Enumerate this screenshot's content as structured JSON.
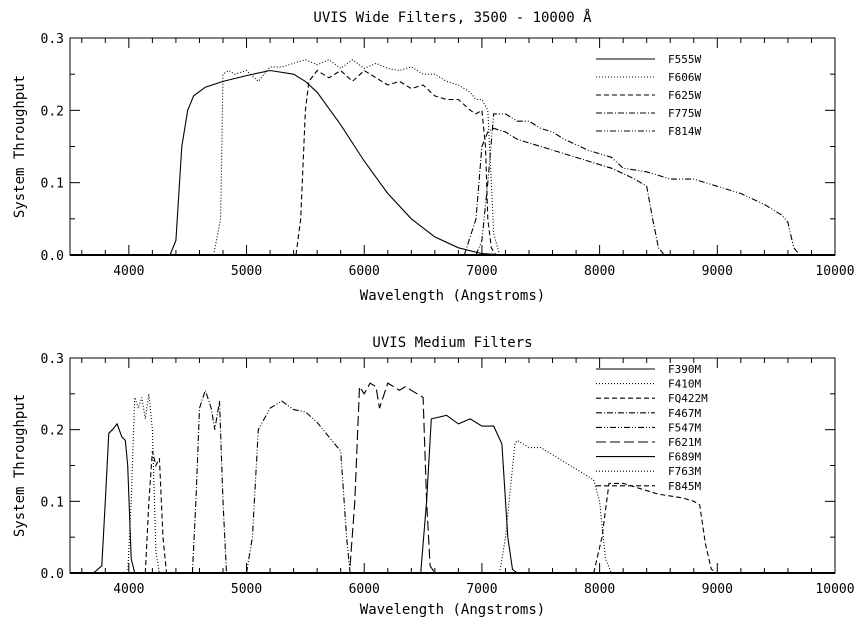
{
  "chart_data": [
    {
      "type": "line",
      "title": "UVIS Wide Filters, 3500 - 10000 Å",
      "xlabel": "Wavelength (Angstroms)",
      "ylabel": "System Throughput",
      "xlim": [
        3500,
        10000
      ],
      "ylim": [
        0,
        0.3
      ],
      "xticks": [
        "4000",
        "5000",
        "6000",
        "7000",
        "8000",
        "9000",
        "10000"
      ],
      "yticks": [
        "0.0",
        "0.1",
        "0.2",
        "0.3"
      ],
      "legend_position": "top-right",
      "grid": false,
      "series": [
        {
          "name": "F555W",
          "style": "solid",
          "points": [
            [
              4350,
              0
            ],
            [
              4400,
              0.02
            ],
            [
              4450,
              0.15
            ],
            [
              4500,
              0.2
            ],
            [
              4550,
              0.22
            ],
            [
              4650,
              0.232
            ],
            [
              4800,
              0.24
            ],
            [
              5000,
              0.248
            ],
            [
              5200,
              0.255
            ],
            [
              5400,
              0.25
            ],
            [
              5500,
              0.24
            ],
            [
              5600,
              0.225
            ],
            [
              5800,
              0.18
            ],
            [
              6000,
              0.13
            ],
            [
              6200,
              0.085
            ],
            [
              6400,
              0.05
            ],
            [
              6600,
              0.025
            ],
            [
              6800,
              0.01
            ],
            [
              7000,
              0.002
            ],
            [
              7200,
              0
            ]
          ]
        },
        {
          "name": "F606W",
          "style": "dotted",
          "points": [
            [
              4720,
              0
            ],
            [
              4780,
              0.05
            ],
            [
              4800,
              0.25
            ],
            [
              4850,
              0.255
            ],
            [
              4900,
              0.25
            ],
            [
              5000,
              0.255
            ],
            [
              5100,
              0.24
            ],
            [
              5200,
              0.26
            ],
            [
              5300,
              0.26
            ],
            [
              5400,
              0.265
            ],
            [
              5500,
              0.27
            ],
            [
              5600,
              0.263
            ],
            [
              5700,
              0.27
            ],
            [
              5800,
              0.258
            ],
            [
              5900,
              0.27
            ],
            [
              6000,
              0.258
            ],
            [
              6100,
              0.265
            ],
            [
              6200,
              0.258
            ],
            [
              6300,
              0.255
            ],
            [
              6400,
              0.26
            ],
            [
              6500,
              0.25
            ],
            [
              6600,
              0.25
            ],
            [
              6700,
              0.24
            ],
            [
              6800,
              0.235
            ],
            [
              6900,
              0.225
            ],
            [
              6950,
              0.215
            ],
            [
              7000,
              0.215
            ],
            [
              7050,
              0.2
            ],
            [
              7080,
              0.1
            ],
            [
              7100,
              0.03
            ],
            [
              7150,
              0
            ]
          ]
        },
        {
          "name": "F625W",
          "style": "dashed",
          "points": [
            [
              5420,
              0
            ],
            [
              5460,
              0.05
            ],
            [
              5500,
              0.2
            ],
            [
              5530,
              0.24
            ],
            [
              5600,
              0.255
            ],
            [
              5700,
              0.245
            ],
            [
              5800,
              0.255
            ],
            [
              5900,
              0.24
            ],
            [
              6000,
              0.255
            ],
            [
              6100,
              0.245
            ],
            [
              6200,
              0.235
            ],
            [
              6300,
              0.24
            ],
            [
              6400,
              0.23
            ],
            [
              6500,
              0.235
            ],
            [
              6600,
              0.22
            ],
            [
              6700,
              0.215
            ],
            [
              6800,
              0.215
            ],
            [
              6900,
              0.2
            ],
            [
              6950,
              0.195
            ],
            [
              7000,
              0.2
            ],
            [
              7030,
              0.15
            ],
            [
              7050,
              0.05
            ],
            [
              7080,
              0.01
            ],
            [
              7120,
              0
            ]
          ]
        },
        {
          "name": "F775W",
          "style": "dash-dot",
          "points": [
            [
              6850,
              0
            ],
            [
              6950,
              0.05
            ],
            [
              7000,
              0.15
            ],
            [
              7050,
              0.17
            ],
            [
              7100,
              0.175
            ],
            [
              7200,
              0.17
            ],
            [
              7300,
              0.16
            ],
            [
              7500,
              0.15
            ],
            [
              7700,
              0.14
            ],
            [
              7900,
              0.13
            ],
            [
              8100,
              0.12
            ],
            [
              8300,
              0.105
            ],
            [
              8400,
              0.095
            ],
            [
              8450,
              0.05
            ],
            [
              8500,
              0.01
            ],
            [
              8550,
              0
            ]
          ]
        },
        {
          "name": "F814W",
          "style": "dash-dot-dot",
          "points": [
            [
              6950,
              0
            ],
            [
              7000,
              0.02
            ],
            [
              7050,
              0.1
            ],
            [
              7100,
              0.195
            ],
            [
              7200,
              0.195
            ],
            [
              7300,
              0.185
            ],
            [
              7400,
              0.185
            ],
            [
              7500,
              0.175
            ],
            [
              7600,
              0.17
            ],
            [
              7700,
              0.16
            ],
            [
              7900,
              0.145
            ],
            [
              8100,
              0.135
            ],
            [
              8200,
              0.12
            ],
            [
              8400,
              0.115
            ],
            [
              8500,
              0.11
            ],
            [
              8600,
              0.105
            ],
            [
              8800,
              0.105
            ],
            [
              9000,
              0.095
            ],
            [
              9200,
              0.085
            ],
            [
              9400,
              0.07
            ],
            [
              9550,
              0.055
            ],
            [
              9600,
              0.045
            ],
            [
              9650,
              0.01
            ],
            [
              9700,
              0
            ]
          ]
        }
      ]
    },
    {
      "type": "line",
      "title": "UVIS Medium Filters",
      "xlabel": "Wavelength (Angstroms)",
      "ylabel": "System Throughput",
      "xlim": [
        3500,
        10000
      ],
      "ylim": [
        0,
        0.3
      ],
      "xticks": [
        "4000",
        "5000",
        "6000",
        "7000",
        "8000",
        "9000",
        "10000"
      ],
      "yticks": [
        "0.0",
        "0.1",
        "0.2",
        "0.3"
      ],
      "legend_position": "top-right",
      "grid": false,
      "series": [
        {
          "name": "F390M",
          "style": "solid",
          "points": [
            [
              3700,
              0
            ],
            [
              3770,
              0.01
            ],
            [
              3800,
              0.1
            ],
            [
              3830,
              0.195
            ],
            [
              3860,
              0.2
            ],
            [
              3900,
              0.208
            ],
            [
              3940,
              0.19
            ],
            [
              3970,
              0.185
            ],
            [
              3990,
              0.15
            ],
            [
              4020,
              0.02
            ],
            [
              4050,
              0
            ]
          ]
        },
        {
          "name": "F410M",
          "style": "dotted",
          "points": [
            [
              3990,
              0
            ],
            [
              4020,
              0.1
            ],
            [
              4050,
              0.245
            ],
            [
              4080,
              0.23
            ],
            [
              4110,
              0.245
            ],
            [
              4140,
              0.215
            ],
            [
              4170,
              0.25
            ],
            [
              4200,
              0.2
            ],
            [
              4230,
              0.03
            ],
            [
              4260,
              0
            ]
          ]
        },
        {
          "name": "FQ422M",
          "style": "dashed",
          "points": [
            [
              4140,
              0
            ],
            [
              4170,
              0.1
            ],
            [
              4200,
              0.17
            ],
            [
              4230,
              0.15
            ],
            [
              4260,
              0.16
            ],
            [
              4290,
              0.05
            ],
            [
              4320,
              0
            ]
          ]
        },
        {
          "name": "F467M",
          "style": "dash-dot",
          "points": [
            [
              4540,
              0
            ],
            [
              4570,
              0.1
            ],
            [
              4600,
              0.23
            ],
            [
              4650,
              0.255
            ],
            [
              4700,
              0.23
            ],
            [
              4730,
              0.2
            ],
            [
              4770,
              0.24
            ],
            [
              4800,
              0.1
            ],
            [
              4830,
              0
            ]
          ]
        },
        {
          "name": "F547M",
          "style": "dash-dot-dot",
          "points": [
            [
              5000,
              0
            ],
            [
              5050,
              0.05
            ],
            [
              5100,
              0.2
            ],
            [
              5200,
              0.23
            ],
            [
              5300,
              0.24
            ],
            [
              5400,
              0.228
            ],
            [
              5500,
              0.225
            ],
            [
              5600,
              0.21
            ],
            [
              5700,
              0.19
            ],
            [
              5800,
              0.17
            ],
            [
              5850,
              0.05
            ],
            [
              5880,
              0
            ]
          ]
        },
        {
          "name": "F621M",
          "style": "long-dash",
          "points": [
            [
              5880,
              0.01
            ],
            [
              5920,
              0.1
            ],
            [
              5960,
              0.26
            ],
            [
              6000,
              0.25
            ],
            [
              6050,
              0.265
            ],
            [
              6100,
              0.26
            ],
            [
              6130,
              0.23
            ],
            [
              6200,
              0.265
            ],
            [
              6300,
              0.255
            ],
            [
              6350,
              0.26
            ],
            [
              6400,
              0.255
            ],
            [
              6450,
              0.25
            ],
            [
              6500,
              0.245
            ],
            [
              6530,
              0.1
            ],
            [
              6560,
              0.01
            ],
            [
              6600,
              0
            ]
          ]
        },
        {
          "name": "F689M",
          "style": "solid",
          "points": [
            [
              6480,
              0
            ],
            [
              6530,
              0.1
            ],
            [
              6570,
              0.215
            ],
            [
              6700,
              0.22
            ],
            [
              6800,
              0.208
            ],
            [
              6900,
              0.215
            ],
            [
              7000,
              0.205
            ],
            [
              7100,
              0.205
            ],
            [
              7170,
              0.18
            ],
            [
              7220,
              0.05
            ],
            [
              7260,
              0.005
            ],
            [
              7300,
              0
            ]
          ]
        },
        {
          "name": "F763M",
          "style": "dotted",
          "points": [
            [
              7150,
              0
            ],
            [
              7200,
              0.05
            ],
            [
              7280,
              0.18
            ],
            [
              7300,
              0.185
            ],
            [
              7400,
              0.175
            ],
            [
              7500,
              0.175
            ],
            [
              7600,
              0.165
            ],
            [
              7800,
              0.145
            ],
            [
              7950,
              0.13
            ],
            [
              8000,
              0.1
            ],
            [
              8050,
              0.02
            ],
            [
              8100,
              0
            ]
          ]
        },
        {
          "name": "F845M",
          "style": "dashed",
          "points": [
            [
              7950,
              0
            ],
            [
              8020,
              0.05
            ],
            [
              8080,
              0.125
            ],
            [
              8200,
              0.125
            ],
            [
              8400,
              0.115
            ],
            [
              8500,
              0.11
            ],
            [
              8700,
              0.105
            ],
            [
              8800,
              0.1
            ],
            [
              8850,
              0.095
            ],
            [
              8900,
              0.04
            ],
            [
              8950,
              0.005
            ],
            [
              9000,
              0
            ]
          ]
        }
      ]
    }
  ]
}
